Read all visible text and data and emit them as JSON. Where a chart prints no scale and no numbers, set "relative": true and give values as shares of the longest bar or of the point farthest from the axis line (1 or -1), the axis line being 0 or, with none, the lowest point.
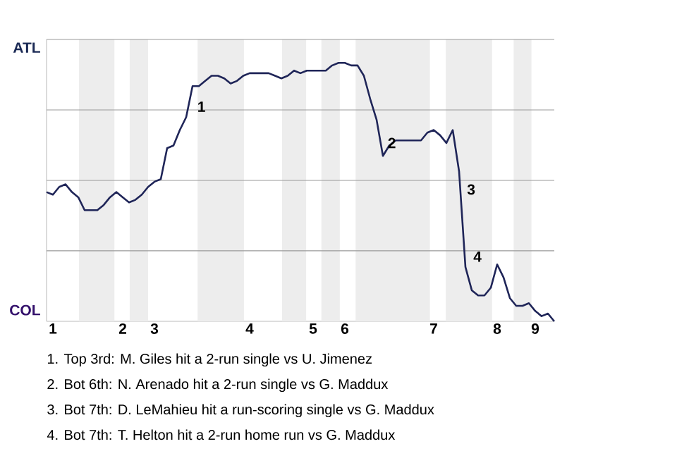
{
  "chart_data": {
    "type": "line",
    "relative": true,
    "categories": [
      null,
      "1",
      null,
      null,
      null,
      null,
      null,
      null,
      null,
      null,
      null,
      null,
      "2",
      null,
      null,
      null,
      null,
      "3",
      null,
      null,
      null,
      null,
      null,
      null,
      null,
      null,
      null,
      null,
      null,
      null,
      null,
      null,
      "4",
      null,
      null,
      null,
      null,
      null,
      null,
      null,
      null,
      null,
      "5",
      null,
      null,
      null,
      null,
      "6",
      null,
      null,
      null,
      null,
      null,
      null,
      null,
      null,
      null,
      null,
      null,
      null,
      null,
      "7",
      null,
      null,
      null,
      null,
      null,
      null,
      null,
      null,
      null,
      "8",
      null,
      null,
      null,
      null,
      null,
      "9",
      null,
      null,
      null
    ],
    "grid": "y",
    "marker": "none",
    "line_style": "solid",
    "series": [
      {
        "color": "#1f2558",
        "values": [
          0.5,
          0.49,
          0.52,
          0.53,
          0.5,
          0.48,
          0.43,
          0.43,
          0.43,
          0.45,
          0.48,
          0.5,
          0.48,
          0.46,
          0.47,
          0.49,
          0.52,
          0.54,
          0.55,
          0.67,
          0.68,
          0.74,
          0.79,
          0.91,
          0.91,
          0.93,
          0.95,
          0.95,
          0.94,
          0.92,
          0.93,
          0.95,
          0.96,
          0.96,
          0.96,
          0.96,
          0.95,
          0.94,
          0.95,
          0.97,
          0.96,
          0.97,
          0.97,
          0.97,
          0.97,
          0.99,
          1,
          1,
          0.99,
          0.99,
          0.95,
          0.86,
          0.78,
          0.64,
          0.68,
          0.7,
          0.7,
          0.7,
          0.7,
          0.7,
          0.73,
          0.74,
          0.72,
          0.69,
          0.74,
          0.58,
          0.21,
          0.12,
          0.1,
          0.1,
          0.13,
          0.22,
          0.17,
          0.09,
          0.06,
          0.06,
          0.07,
          0.04,
          0.02,
          0.03,
          0
        ]
      }
    ],
    "annotations": [
      "ATL",
      "COL",
      "1",
      "2",
      "3",
      "4",
      "1. Top 3rd: M. Giles hit a 2-run single vs U. Jimenez",
      "2. Bot 6th: N. Arenado hit a 2-run single vs G. Maddux",
      "3. Bot 7th: D. LeMahieu hit a run-scoring single vs G. Maddux",
      "4. Bot 7th: T. Helton hit a 2-run home run vs G. Maddux"
    ]
  }
}
